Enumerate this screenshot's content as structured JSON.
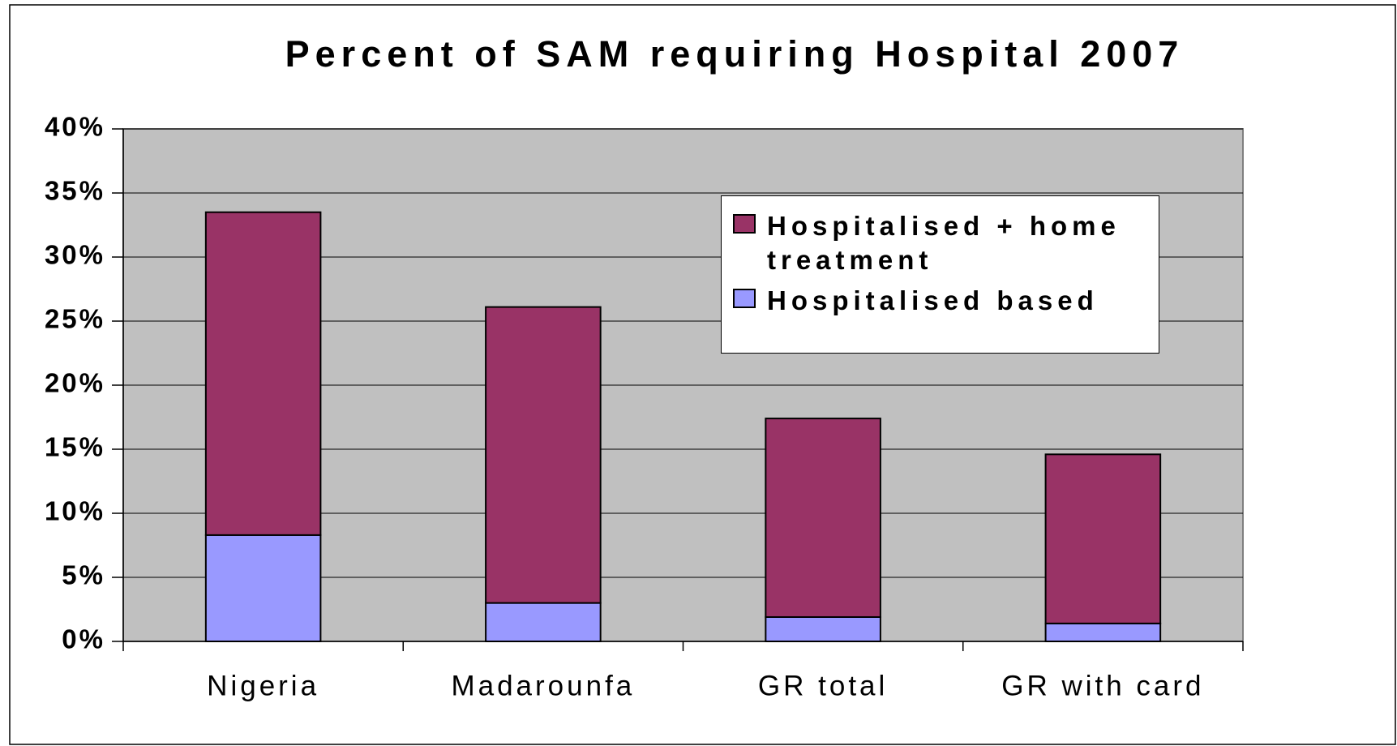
{
  "chart_data": {
    "type": "stacked_bar",
    "title": "Percent of SAM requiring Hospital 2007",
    "categories": [
      "Nigeria",
      "Madarounfa",
      "GR total",
      "GR with card"
    ],
    "series": [
      {
        "name": "Hospitalised based",
        "color": "#9999ff",
        "values": [
          8.3,
          3.0,
          1.9,
          1.4
        ]
      },
      {
        "name": "Hospitalised + home treatment",
        "color": "#993366",
        "values": [
          25.2,
          23.1,
          15.5,
          13.2
        ]
      }
    ],
    "ylim": [
      0,
      40
    ],
    "yticks": [
      {
        "value": 0,
        "label": "0%"
      },
      {
        "value": 5,
        "label": "5%"
      },
      {
        "value": 10,
        "label": "10%"
      },
      {
        "value": 15,
        "label": "15%"
      },
      {
        "value": 20,
        "label": "20%"
      },
      {
        "value": 25,
        "label": "25%"
      },
      {
        "value": 30,
        "label": "30%"
      },
      {
        "value": 35,
        "label": "35%"
      },
      {
        "value": 40,
        "label": "40%"
      }
    ],
    "grid": true,
    "legend": "upper right",
    "plot_background": "#c0c0c0"
  }
}
